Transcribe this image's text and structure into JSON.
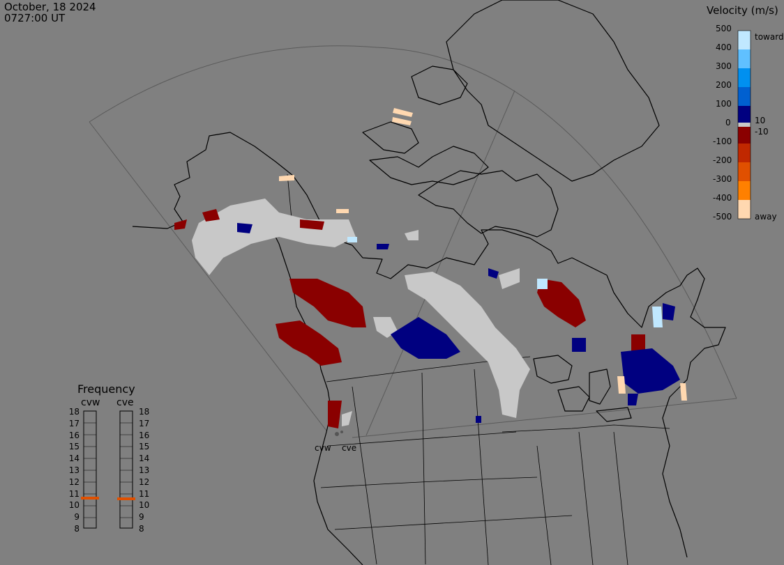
{
  "header": {
    "date": "October, 18 2024",
    "time": "0727:00 UT"
  },
  "legend": {
    "title": "Velocity (m/s)",
    "ticks": [
      "500",
      "400",
      "300",
      "200",
      "100",
      "0",
      "-100",
      "-200",
      "-300",
      "-400",
      "-500"
    ],
    "label_toward": "toward",
    "label_away": "away",
    "label_pos10": "10",
    "label_neg10": "-10",
    "colors": [
      "#ffd8b0",
      "#ffb060",
      "#ff8000",
      "#e05000",
      "#c02800",
      "#a00000",
      "#8a0000",
      "#c8c8c8",
      "#000080",
      "#0030a0",
      "#0060d0",
      "#0090f0",
      "#60c0ff",
      "#c0e8ff"
    ]
  },
  "radars": [
    {
      "id": "cvw",
      "label": "cvw"
    },
    {
      "id": "cve",
      "label": "cve"
    }
  ],
  "frequency": {
    "title": "Frequency",
    "col_left": "cvw",
    "col_right": "cve",
    "levels": [
      "18",
      "17",
      "16",
      "15",
      "14",
      "13",
      "12",
      "11",
      "10",
      "9",
      "8"
    ],
    "marker_level": 10.8,
    "marker_color": "#e05000"
  },
  "colors": {
    "background": "#808080",
    "ground_scatter": "#c8c8c8",
    "positive": "#000080",
    "negative": "#8a0000"
  }
}
